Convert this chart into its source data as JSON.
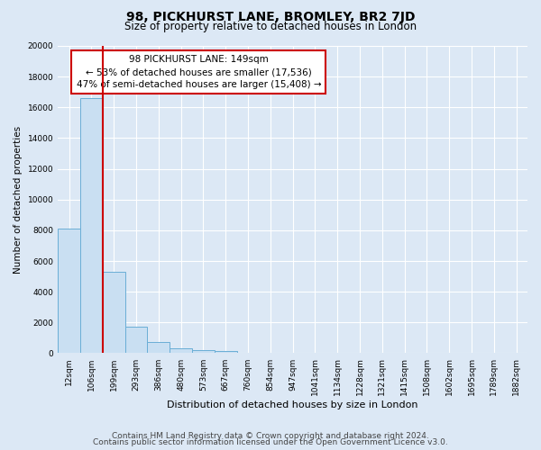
{
  "title": "98, PICKHURST LANE, BROMLEY, BR2 7JD",
  "subtitle": "Size of property relative to detached houses in London",
  "xlabel": "Distribution of detached houses by size in London",
  "ylabel": "Number of detached properties",
  "bin_labels": [
    "12sqm",
    "106sqm",
    "199sqm",
    "293sqm",
    "386sqm",
    "480sqm",
    "573sqm",
    "667sqm",
    "760sqm",
    "854sqm",
    "947sqm",
    "1041sqm",
    "1134sqm",
    "1228sqm",
    "1321sqm",
    "1415sqm",
    "1508sqm",
    "1602sqm",
    "1695sqm",
    "1789sqm",
    "1882sqm"
  ],
  "bin_values": [
    8100,
    16600,
    5300,
    1750,
    750,
    300,
    200,
    150,
    0,
    0,
    0,
    0,
    0,
    0,
    0,
    0,
    0,
    0,
    0,
    0,
    0
  ],
  "bar_color": "#c9dff2",
  "bar_edge_color": "#6aaed6",
  "vline_color": "#cc0000",
  "annotation_text": "98 PICKHURST LANE: 149sqm\n← 53% of detached houses are smaller (17,536)\n47% of semi-detached houses are larger (15,408) →",
  "annotation_box_color": "#ffffff",
  "annotation_box_edge": "#cc0000",
  "ylim": [
    0,
    20000
  ],
  "yticks": [
    0,
    2000,
    4000,
    6000,
    8000,
    10000,
    12000,
    14000,
    16000,
    18000,
    20000
  ],
  "footer1": "Contains HM Land Registry data © Crown copyright and database right 2024.",
  "footer2": "Contains public sector information licensed under the Open Government Licence v3.0.",
  "background_color": "#dce8f5",
  "plot_bg_color": "#dce8f5",
  "grid_color": "#ffffff",
  "title_fontsize": 10,
  "subtitle_fontsize": 8.5,
  "ylabel_fontsize": 7.5,
  "xlabel_fontsize": 8,
  "tick_fontsize": 6.5,
  "annotation_fontsize": 7.5,
  "footer_fontsize": 6.5
}
